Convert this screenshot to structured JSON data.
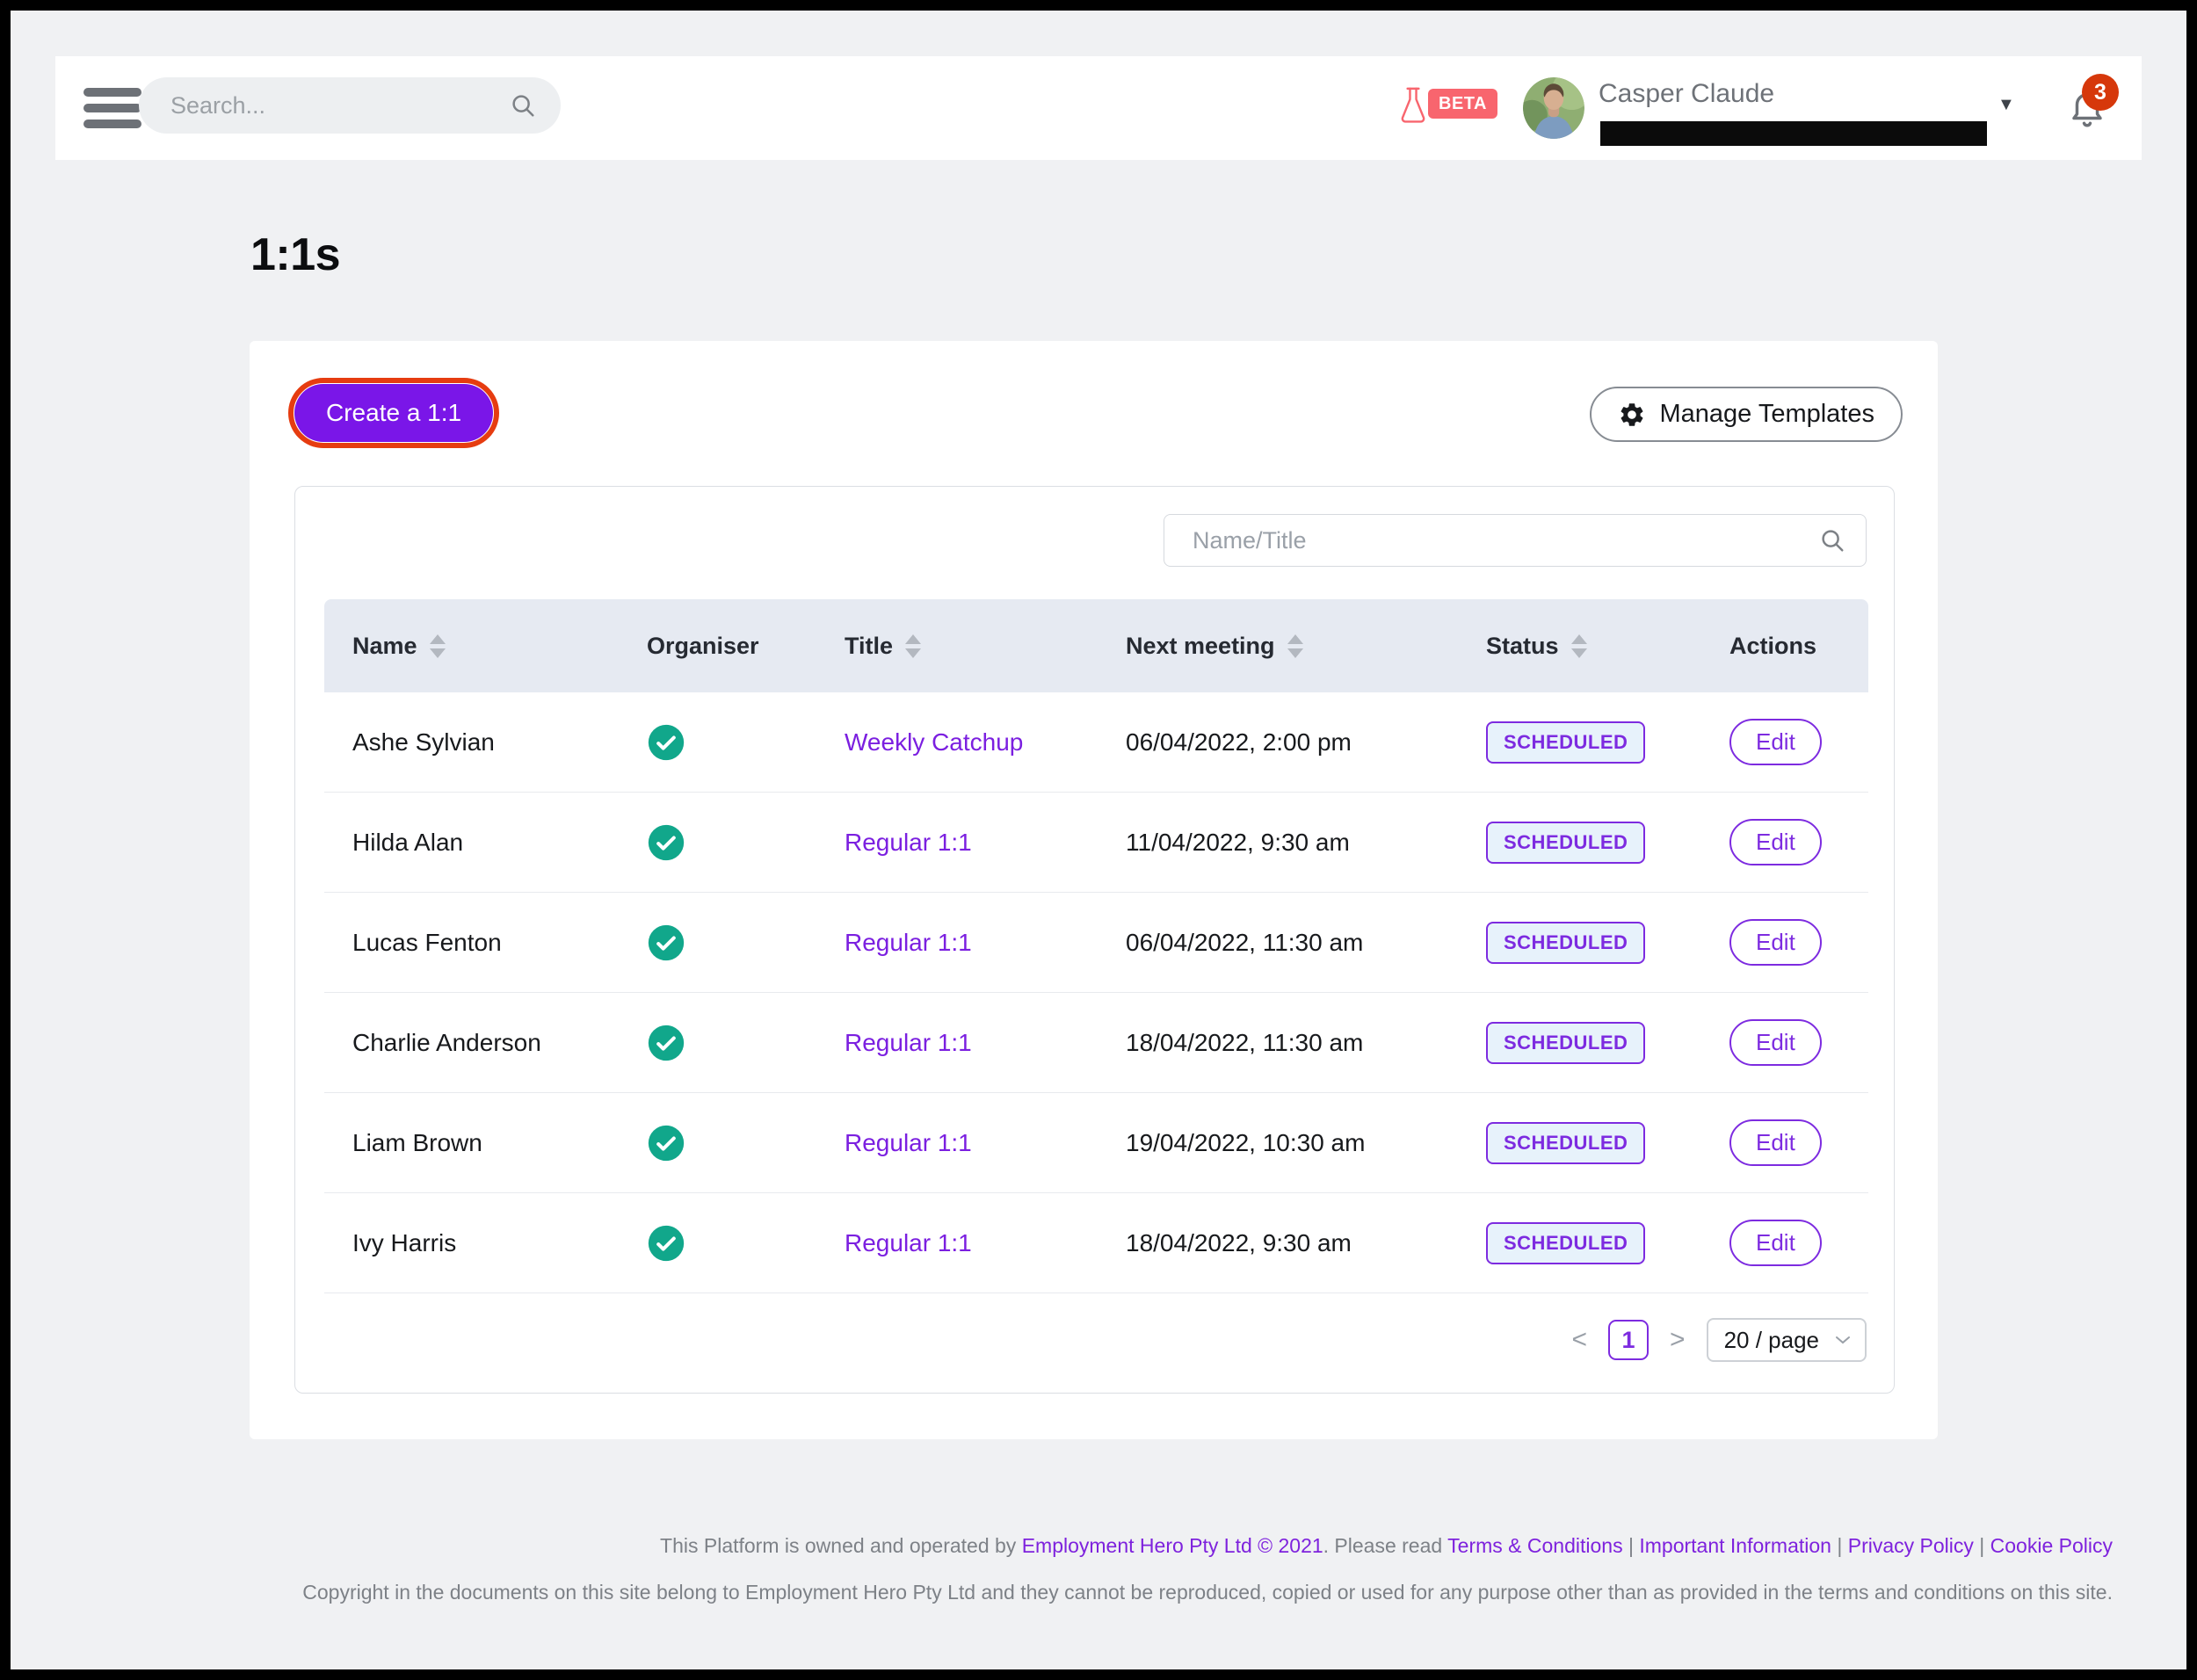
{
  "topbar": {
    "search_placeholder": "Search...",
    "beta_label": "BETA",
    "user_name": "Casper Claude",
    "email_redacted": true,
    "notification_count": "3",
    "icons": [
      "hamburger-menu",
      "magnifier",
      "flask-beta",
      "chevron-down",
      "bell"
    ]
  },
  "page": {
    "title": "1:1s"
  },
  "toolbar": {
    "create_label": "Create a 1:1",
    "manage_templates_label": "Manage Templates",
    "create_highlight_color": "#e63c10"
  },
  "panel": {
    "filter_placeholder": "Name/Title"
  },
  "table": {
    "columns": [
      {
        "label": "Name",
        "sortable": true
      },
      {
        "label": "Organiser",
        "sortable": false
      },
      {
        "label": "Title",
        "sortable": true
      },
      {
        "label": "Next meeting",
        "sortable": true
      },
      {
        "label": "Status",
        "sortable": true
      },
      {
        "label": "Actions",
        "sortable": false
      }
    ],
    "rows": [
      {
        "name": "Ashe Sylvian",
        "organiser": true,
        "title": "Weekly Catchup",
        "next_meeting": "06/04/2022, 2:00 pm",
        "status": "SCHEDULED",
        "action": "Edit"
      },
      {
        "name": "Hilda Alan",
        "organiser": true,
        "title": "Regular 1:1",
        "next_meeting": "11/04/2022, 9:30 am",
        "status": "SCHEDULED",
        "action": "Edit"
      },
      {
        "name": "Lucas Fenton",
        "organiser": true,
        "title": "Regular 1:1",
        "next_meeting": "06/04/2022, 11:30 am",
        "status": "SCHEDULED",
        "action": "Edit"
      },
      {
        "name": "Charlie Anderson",
        "organiser": true,
        "title": "Regular 1:1",
        "next_meeting": "18/04/2022, 11:30 am",
        "status": "SCHEDULED",
        "action": "Edit"
      },
      {
        "name": "Liam Brown",
        "organiser": true,
        "title": "Regular 1:1",
        "next_meeting": "19/04/2022, 10:30 am",
        "status": "SCHEDULED",
        "action": "Edit"
      },
      {
        "name": "Ivy Harris",
        "organiser": true,
        "title": "Regular 1:1",
        "next_meeting": "18/04/2022, 9:30 am",
        "status": "SCHEDULED",
        "action": "Edit"
      }
    ]
  },
  "pagination": {
    "prev": "<",
    "current_page": "1",
    "next": ">",
    "page_size": "20 / page"
  },
  "footer": {
    "line1_parts": [
      {
        "text": "This Platform is owned and operated by ",
        "link": false
      },
      {
        "text": "Employment Hero Pty Ltd © 2021",
        "link": true
      },
      {
        "text": ". Please read ",
        "link": false
      },
      {
        "text": "Terms & Conditions",
        "link": true
      },
      {
        "text": " | ",
        "link": false
      },
      {
        "text": "Important Information",
        "link": true
      },
      {
        "text": " | ",
        "link": false
      },
      {
        "text": "Privacy Policy",
        "link": true
      },
      {
        "text": " | ",
        "link": false
      },
      {
        "text": "Cookie Policy",
        "link": true
      }
    ],
    "line2": "Copyright in the documents on this site belong to Employment Hero Pty Ltd and they cannot be reproduced, copied or used for any purpose other than as provided in the terms and conditions on this site."
  },
  "colors": {
    "accent_purple": "#7a16e8",
    "link_purple": "#7b1fe0",
    "highlight_ring_red": "#e63c10",
    "status_scheduled_border": "#7d2be0",
    "status_scheduled_bg": "#e7f2fb",
    "organiser_check_teal": "#11a78b",
    "notification_red": "#d6380b",
    "beta_coral": "#f8656e",
    "table_header_bg": "#e6eaf2",
    "page_bg": "#f0f1f3"
  }
}
